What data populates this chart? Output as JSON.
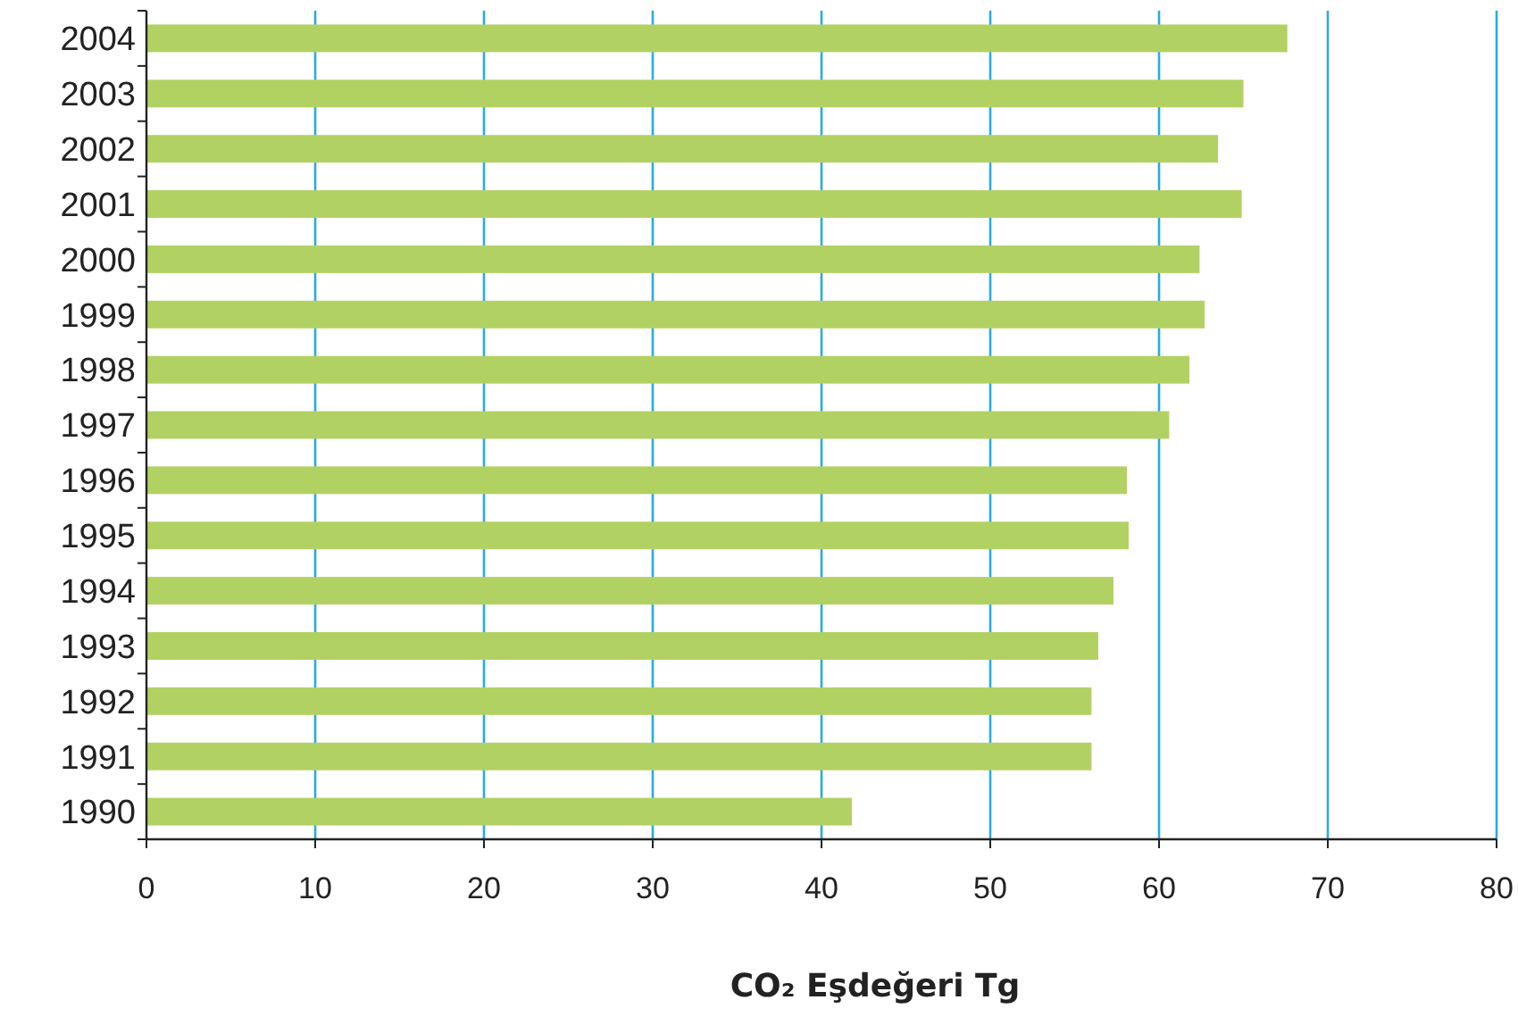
{
  "chart_data": {
    "type": "bar",
    "orientation": "horizontal",
    "xlabel": "CO₂ Eşdeğeri Tg",
    "categories": [
      "2004",
      "2003",
      "2002",
      "2001",
      "2000",
      "1999",
      "1998",
      "1997",
      "1996",
      "1995",
      "1994",
      "1993",
      "1992",
      "1991",
      "1990"
    ],
    "values": [
      67.6,
      65.0,
      63.5,
      64.9,
      62.4,
      62.7,
      61.8,
      60.6,
      58.1,
      58.2,
      57.3,
      56.4,
      56.0,
      56.0,
      41.8
    ],
    "color": "#b2d163",
    "xlim": [
      0,
      80
    ],
    "xticks": [
      0,
      10,
      20,
      30,
      40,
      50,
      60,
      70,
      80
    ],
    "grid": "x"
  }
}
